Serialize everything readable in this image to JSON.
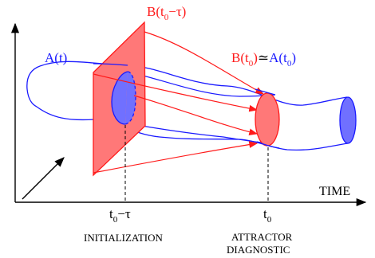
{
  "labels": {
    "a_t": {
      "main": "A(t)",
      "color": "#1a1aff"
    },
    "b_t0_tau": {
      "main": "B(t",
      "sub": "0",
      "rest": "−τ)",
      "color": "#ff1a1a"
    },
    "b_t0": {
      "main": "B(t",
      "sub": "0",
      "rest": ")",
      "color": "#ff1a1a"
    },
    "approx": {
      "symbol": "≃",
      "color": "#000000"
    },
    "a_t0": {
      "main": "A(t",
      "sub": "0",
      "rest": ")",
      "color": "#1a1aff"
    },
    "time_axis": "TIME",
    "tick_init": {
      "main": "t",
      "sub": "0",
      "rest": "−τ"
    },
    "tick_attr": {
      "main": "t",
      "sub": "0"
    },
    "initialization": "INITIALIZATION",
    "attractor_line1": "ATTRACTOR",
    "attractor_line2": "DIAGNOSTIC"
  },
  "colors": {
    "red_fill": "#ff7878",
    "red_stroke": "#ff1a1a",
    "blue_fill": "#7070ff",
    "blue_stroke": "#1a1aff",
    "axis": "#000000"
  }
}
